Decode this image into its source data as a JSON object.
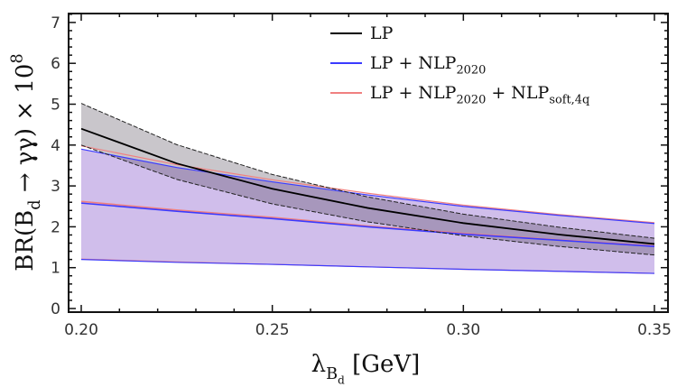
{
  "chart_data": {
    "type": "area",
    "title": "",
    "xlabel": "λ_{B_{d}}  [GeV]",
    "ylabel": "BR(B_{d} → γγ) × 10^{8}",
    "xlim": [
      0.2,
      0.35
    ],
    "ylim": [
      0,
      7.4
    ],
    "xticks": [
      "0.20",
      "0.25",
      "0.30",
      "0.35"
    ],
    "yticks": [
      "0",
      "1",
      "2",
      "3",
      "4",
      "5",
      "6",
      "7"
    ],
    "grid": false,
    "legend_position": "top-center",
    "x": [
      0.2,
      0.225,
      0.25,
      0.275,
      0.3,
      0.325,
      0.35
    ],
    "series": [
      {
        "name": "LP",
        "color": "#000000",
        "band_color": "#b4b4b4",
        "central": [
          4.4,
          3.55,
          2.93,
          2.46,
          2.09,
          1.81,
          1.58
        ],
        "upper": [
          5.02,
          4.01,
          3.28,
          2.73,
          2.31,
          1.99,
          1.72
        ],
        "lower": [
          4.0,
          3.16,
          2.56,
          2.12,
          1.78,
          1.52,
          1.31
        ]
      },
      {
        "name": "LP + NLP_{2020}",
        "color": "#3b3bff",
        "band_color": "#b9a3e0",
        "central": [
          2.58,
          2.38,
          2.2,
          2.0,
          1.82,
          1.67,
          1.52
        ],
        "upper": [
          3.9,
          3.45,
          3.1,
          2.78,
          2.5,
          2.28,
          2.08
        ],
        "lower": [
          1.2,
          1.13,
          1.08,
          1.02,
          0.96,
          0.91,
          0.86
        ]
      },
      {
        "name": "LP + NLP_{2020} + NLP_{soft,4q}",
        "color": "#f08080",
        "band_color": "#e0b0c0",
        "central": [
          2.62,
          2.41,
          2.23,
          2.02,
          1.84,
          1.68,
          1.53
        ],
        "upper": [
          3.98,
          3.52,
          3.15,
          2.82,
          2.53,
          2.3,
          2.1
        ],
        "lower": [
          1.21,
          1.14,
          1.08,
          1.02,
          0.96,
          0.91,
          0.86
        ]
      }
    ]
  }
}
